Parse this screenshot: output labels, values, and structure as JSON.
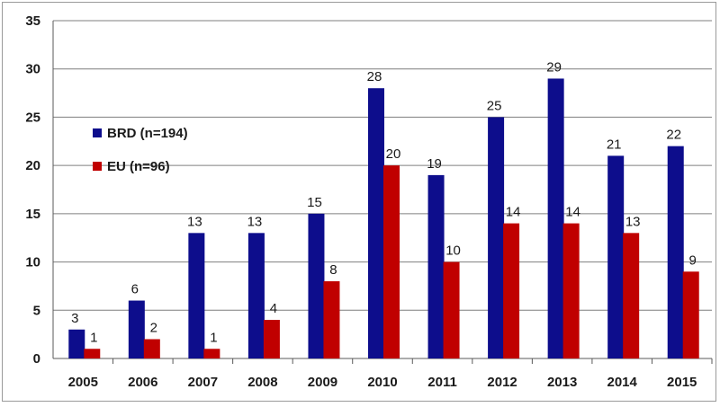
{
  "chart_data": {
    "type": "bar",
    "categories": [
      "2005",
      "2006",
      "2007",
      "2008",
      "2009",
      "2010",
      "2011",
      "2012",
      "2013",
      "2014",
      "2015"
    ],
    "series": [
      {
        "name": "BRD (n=194)",
        "color": "#0d0d8c",
        "values": [
          3,
          6,
          13,
          13,
          15,
          28,
          19,
          25,
          29,
          21,
          22
        ]
      },
      {
        "name": "EU (n=96)",
        "color": "#c00000",
        "values": [
          1,
          2,
          1,
          4,
          8,
          20,
          10,
          14,
          14,
          13,
          9
        ]
      }
    ],
    "yticks": [
      0,
      5,
      10,
      15,
      20,
      25,
      30,
      35
    ],
    "ylim": [
      0,
      35
    ],
    "grid": true,
    "legend_position": "upper-left",
    "title": "",
    "xlabel": "",
    "ylabel": ""
  }
}
